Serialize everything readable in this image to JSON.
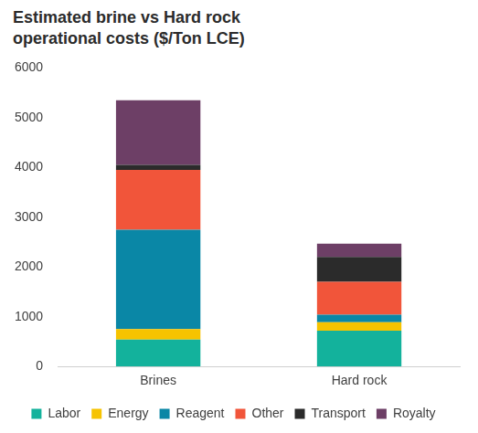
{
  "chart_data": {
    "type": "bar",
    "title": "Estimated brine vs Hard rock operational costs ($/Ton LCE)",
    "categories": [
      "Brines",
      "Hard rock"
    ],
    "series": [
      {
        "name": "Labor",
        "color": "#13b29c",
        "values": [
          540,
          720
        ]
      },
      {
        "name": "Energy",
        "color": "#f6c300",
        "values": [
          210,
          170
        ]
      },
      {
        "name": "Reagent",
        "color": "#0a87a6",
        "values": [
          2000,
          150
        ]
      },
      {
        "name": "Other",
        "color": "#f1553a",
        "values": [
          1200,
          660
        ]
      },
      {
        "name": "Transport",
        "color": "#2b2b2b",
        "values": [
          100,
          500
        ]
      },
      {
        "name": "Royalty",
        "color": "#6d3f66",
        "values": [
          1300,
          270
        ]
      }
    ],
    "ylim": [
      0,
      6000
    ],
    "yticks": [
      0,
      1000,
      2000,
      3000,
      4000,
      5000,
      6000
    ],
    "stacked": true,
    "grid": false,
    "legend": "bottom"
  }
}
